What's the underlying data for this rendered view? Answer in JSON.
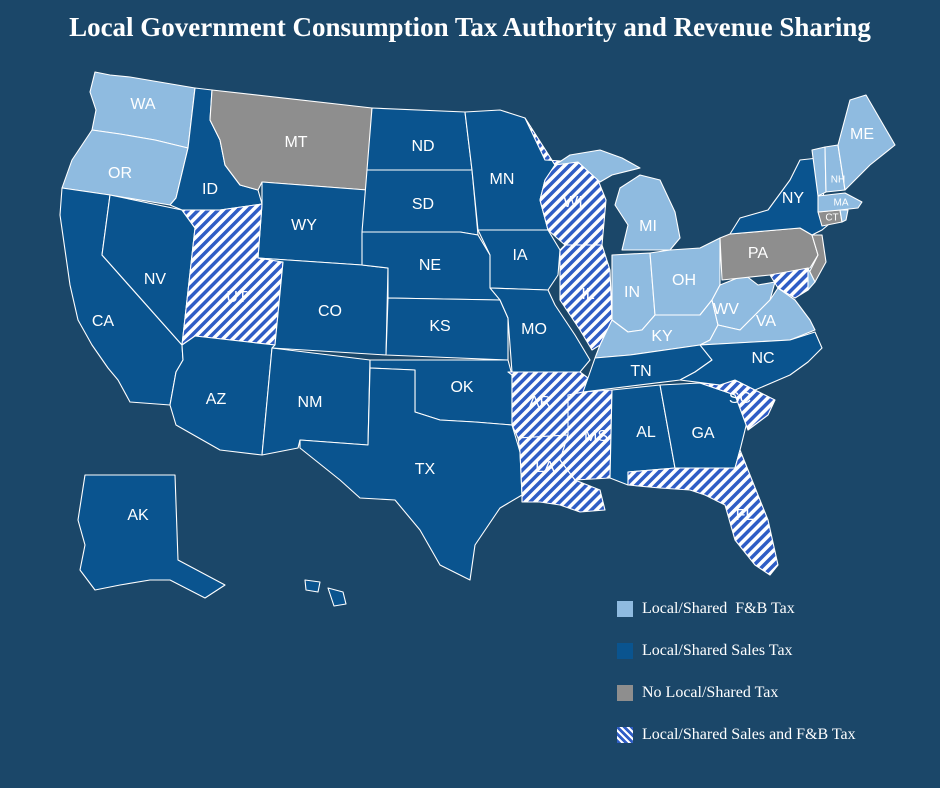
{
  "title": "Local Government Consumption Tax Authority and Revenue Sharing",
  "colors": {
    "background": "#1b4769",
    "fb_tax": "#8fbbe0",
    "sales_tax": "#0a548f",
    "no_tax": "#8e8e8e",
    "hatch": "#2f5dc5",
    "border": "#ffffff"
  },
  "categories": {
    "fb": "Local/Shared  F&B Tax",
    "sales": "Local/Shared Sales Tax",
    "none": "No Local/Shared Tax",
    "both": "Local/Shared Sales and F&B Tax"
  },
  "legend": [
    {
      "key": "fb",
      "label": "Local/Shared  F&B Tax"
    },
    {
      "key": "sales",
      "label": "Local/Shared Sales Tax"
    },
    {
      "key": "none",
      "label": "No Local/Shared Tax"
    },
    {
      "key": "both",
      "label": "Local/Shared Sales and F&B Tax"
    }
  ],
  "states": [
    {
      "code": "WA",
      "label": "WA",
      "category": "fb"
    },
    {
      "code": "OR",
      "label": "OR",
      "category": "fb"
    },
    {
      "code": "CA",
      "label": "CA",
      "category": "sales"
    },
    {
      "code": "NV",
      "label": "NV",
      "category": "sales"
    },
    {
      "code": "ID",
      "label": "ID",
      "category": "sales"
    },
    {
      "code": "MT",
      "label": "MT",
      "category": "none"
    },
    {
      "code": "WY",
      "label": "WY",
      "category": "sales"
    },
    {
      "code": "UT",
      "label": "UT",
      "category": "both"
    },
    {
      "code": "AZ",
      "label": "AZ",
      "category": "sales"
    },
    {
      "code": "CO",
      "label": "CO",
      "category": "sales"
    },
    {
      "code": "NM",
      "label": "NM",
      "category": "sales"
    },
    {
      "code": "ND",
      "label": "ND",
      "category": "sales"
    },
    {
      "code": "SD",
      "label": "SD",
      "category": "sales"
    },
    {
      "code": "NE",
      "label": "NE",
      "category": "sales"
    },
    {
      "code": "KS",
      "label": "KS",
      "category": "sales"
    },
    {
      "code": "OK",
      "label": "OK",
      "category": "sales"
    },
    {
      "code": "TX",
      "label": "TX",
      "category": "sales"
    },
    {
      "code": "MN",
      "label": "MN",
      "category": "sales"
    },
    {
      "code": "IA",
      "label": "IA",
      "category": "sales"
    },
    {
      "code": "MO",
      "label": "MO",
      "category": "sales"
    },
    {
      "code": "AR",
      "label": "AR",
      "category": "both"
    },
    {
      "code": "LA",
      "label": "LA",
      "category": "both"
    },
    {
      "code": "WI",
      "label": "WI",
      "category": "both"
    },
    {
      "code": "IL",
      "label": "IL",
      "category": "both"
    },
    {
      "code": "MI",
      "label": "MI",
      "category": "fb"
    },
    {
      "code": "IN",
      "label": "IN",
      "category": "fb"
    },
    {
      "code": "OH",
      "label": "OH",
      "category": "fb"
    },
    {
      "code": "KY",
      "label": "KY",
      "category": "fb"
    },
    {
      "code": "WV",
      "label": "WV",
      "category": "fb"
    },
    {
      "code": "VA",
      "label": "VA",
      "category": "fb"
    },
    {
      "code": "TN",
      "label": "TN",
      "category": "sales"
    },
    {
      "code": "MS",
      "label": "MS",
      "category": "both"
    },
    {
      "code": "AL",
      "label": "AL",
      "category": "sales"
    },
    {
      "code": "GA",
      "label": "GA",
      "category": "sales"
    },
    {
      "code": "FL",
      "label": "FL",
      "category": "both"
    },
    {
      "code": "SC",
      "label": "SC",
      "category": "both"
    },
    {
      "code": "NC",
      "label": "NC",
      "category": "sales"
    },
    {
      "code": "PA",
      "label": "PA",
      "category": "none"
    },
    {
      "code": "NY",
      "label": "NY",
      "category": "sales"
    },
    {
      "code": "NJ",
      "label": "",
      "category": "none"
    },
    {
      "code": "MD",
      "label": "",
      "category": "both"
    },
    {
      "code": "DE",
      "label": "",
      "category": "fb"
    },
    {
      "code": "CT",
      "label": "CT",
      "category": "none"
    },
    {
      "code": "RI",
      "label": "",
      "category": "fb"
    },
    {
      "code": "MA",
      "label": "MA",
      "category": "fb"
    },
    {
      "code": "VT",
      "label": "",
      "category": "fb"
    },
    {
      "code": "NH",
      "label": "NH",
      "category": "fb"
    },
    {
      "code": "ME",
      "label": "ME",
      "category": "fb"
    },
    {
      "code": "AK",
      "label": "AK",
      "category": "sales"
    },
    {
      "code": "HI",
      "label": "",
      "category": "sales"
    }
  ]
}
